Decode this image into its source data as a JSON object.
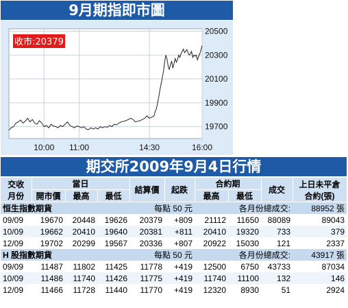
{
  "chart_title": "9月期指即市圖",
  "chart_data": {
    "type": "line",
    "close_label": "收市:20379",
    "yticks": [
      19700,
      19900,
      20100,
      20300,
      20500
    ],
    "ylim": [
      19600,
      20520
    ],
    "xticks": [
      {
        "label": "10:00",
        "t": 60
      },
      {
        "label": "11:00",
        "t": 120
      },
      {
        "label": "14:30",
        "t": 240
      },
      {
        "label": "16:00",
        "t": 330
      }
    ],
    "xlim": [
      0,
      330
    ],
    "points": [
      [
        0,
        19670
      ],
      [
        4,
        19690
      ],
      [
        8,
        19700
      ],
      [
        12,
        19730
      ],
      [
        16,
        19740
      ],
      [
        20,
        19755
      ],
      [
        24,
        19730
      ],
      [
        28,
        19745
      ],
      [
        32,
        19770
      ],
      [
        36,
        19740
      ],
      [
        40,
        19760
      ],
      [
        44,
        19730
      ],
      [
        48,
        19720
      ],
      [
        52,
        19750
      ],
      [
        56,
        19730
      ],
      [
        60,
        19700
      ],
      [
        64,
        19710
      ],
      [
        68,
        19690
      ],
      [
        72,
        19720
      ],
      [
        76,
        19705
      ],
      [
        80,
        19700
      ],
      [
        84,
        19690
      ],
      [
        88,
        19710
      ],
      [
        92,
        19700
      ],
      [
        96,
        19720
      ],
      [
        100,
        19740
      ],
      [
        104,
        19710
      ],
      [
        108,
        19700
      ],
      [
        112,
        19690
      ],
      [
        116,
        19705
      ],
      [
        120,
        19700
      ],
      [
        124,
        19690
      ],
      [
        128,
        19700
      ],
      [
        132,
        19680
      ],
      [
        136,
        19675
      ],
      [
        140,
        19690
      ],
      [
        144,
        19680
      ],
      [
        148,
        19690
      ],
      [
        152,
        19680
      ],
      [
        156,
        19700
      ],
      [
        160,
        19690
      ],
      [
        164,
        19700
      ],
      [
        168,
        19695
      ],
      [
        172,
        19710
      ],
      [
        176,
        19700
      ],
      [
        180,
        19720
      ],
      [
        184,
        19715
      ],
      [
        188,
        19730
      ],
      [
        192,
        19740
      ],
      [
        196,
        19745
      ],
      [
        200,
        19750
      ],
      [
        204,
        19760
      ],
      [
        208,
        19770
      ],
      [
        212,
        19760
      ],
      [
        216,
        19740
      ],
      [
        220,
        19745
      ],
      [
        224,
        19750
      ],
      [
        228,
        19760
      ],
      [
        232,
        19770
      ],
      [
        236,
        19790
      ],
      [
        240,
        19770
      ],
      [
        244,
        19780
      ],
      [
        248,
        19790
      ],
      [
        250,
        19830
      ],
      [
        252,
        19850
      ],
      [
        254,
        19900
      ],
      [
        256,
        19950
      ],
      [
        258,
        20010
      ],
      [
        260,
        20060
      ],
      [
        262,
        20110
      ],
      [
        264,
        20160
      ],
      [
        266,
        20240
      ],
      [
        268,
        20300
      ],
      [
        270,
        20270
      ],
      [
        272,
        20210
      ],
      [
        274,
        20180
      ],
      [
        276,
        20220
      ],
      [
        278,
        20250
      ],
      [
        280,
        20190
      ],
      [
        282,
        20230
      ],
      [
        284,
        20270
      ],
      [
        286,
        20240
      ],
      [
        288,
        20260
      ],
      [
        290,
        20300
      ],
      [
        292,
        20280
      ],
      [
        294,
        20310
      ],
      [
        296,
        20330
      ],
      [
        298,
        20350
      ],
      [
        300,
        20320
      ],
      [
        302,
        20330
      ],
      [
        304,
        20345
      ],
      [
        306,
        20320
      ],
      [
        308,
        20300
      ],
      [
        310,
        20310
      ],
      [
        312,
        20330
      ],
      [
        314,
        20280
      ],
      [
        316,
        20300
      ],
      [
        318,
        20290
      ],
      [
        320,
        20300
      ],
      [
        322,
        20260
      ],
      [
        324,
        20290
      ],
      [
        326,
        20310
      ],
      [
        328,
        20340
      ],
      [
        330,
        20379
      ]
    ]
  },
  "market_title": "期交所2009年9月4日行情",
  "table": {
    "h_month_1": "交收",
    "h_month_2": "月份",
    "h_day": "當日",
    "h_open": "開市價",
    "h_high": "最高",
    "h_low": "最低",
    "h_settle": "結算價",
    "h_change": "起跌",
    "h_contract": "合約期",
    "h_c_high": "最高",
    "h_c_low": "最低",
    "h_volume": "成交",
    "h_oi_1": "上日未平倉",
    "h_oi_2": "合約(張)",
    "sections": [
      {
        "name": "恒生指數期貨",
        "per_point": "每點 50 元",
        "total_label": "各月份總成交:",
        "total_value": "88952 張",
        "rows": [
          {
            "month": "09/09",
            "open": "19670",
            "high": "20448",
            "low": "19626",
            "settle": "20379",
            "change": "+809",
            "c_high": "21112",
            "c_low": "11650",
            "volume": "88089",
            "oi": "89043"
          },
          {
            "month": "10/09",
            "open": "19662",
            "high": "20410",
            "low": "19640",
            "settle": "20381",
            "change": "+811",
            "c_high": "20410",
            "c_low": "19320",
            "volume": "733",
            "oi": "379"
          },
          {
            "month": "12/09",
            "open": "19702",
            "high": "20299",
            "low": "19567",
            "settle": "20336",
            "change": "+807",
            "c_high": "20922",
            "c_low": "15030",
            "volume": "121",
            "oi": "2337"
          }
        ]
      },
      {
        "name": "H 股指數期貨",
        "per_point": "每點 50 元",
        "total_label": "各月份總成交:",
        "total_value": "43917 張",
        "rows": [
          {
            "month": "09/09",
            "open": "11487",
            "high": "11802",
            "low": "11425",
            "settle": "11778",
            "change": "+419",
            "c_high": "12500",
            "c_low": "6750",
            "volume": "43733",
            "oi": "87034"
          },
          {
            "month": "10/09",
            "open": "11486",
            "high": "11740",
            "low": "11426",
            "settle": "11775",
            "change": "+419",
            "c_high": "11740",
            "c_low": "11100",
            "volume": "132",
            "oi": "146"
          },
          {
            "month": "12/09",
            "open": "11466",
            "high": "11728",
            "low": "11440",
            "settle": "11770",
            "change": "+419",
            "c_high": "12320",
            "c_low": "8930",
            "volume": "51",
            "oi": "2924"
          }
        ]
      }
    ]
  }
}
